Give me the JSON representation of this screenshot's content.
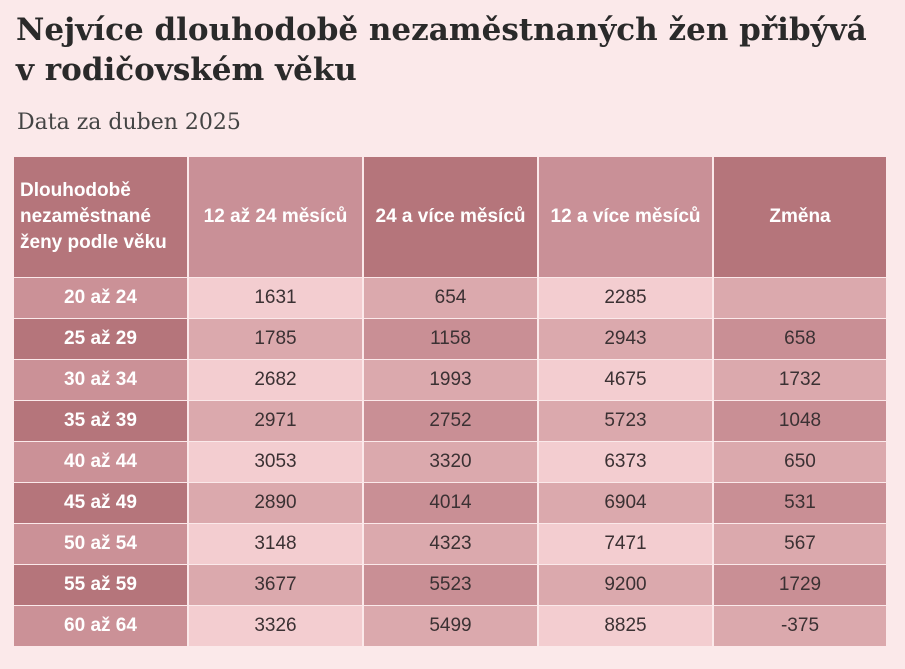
{
  "title": "Nejvíce dlouhodobě nezaměstnaných žen přibývá v rodičovském věku",
  "subtitle": "Data za duben 2025",
  "colors": {
    "background": "#fbe9ea",
    "header_dark": "#b5757b",
    "header_light": "#c99097",
    "label_dark": "#b5757b",
    "label_light": "#cb9197",
    "cell_light": "#f3cdd0",
    "cell_mid": "#dba9ad",
    "cell_dark": "#c98f95"
  },
  "chart_data": {
    "type": "table",
    "columns": [
      "Dlouhodobě nezaměstnané ženy podle věku",
      "12 až 24 měsíců",
      "24 a více měsíců",
      "12 a více měsíců",
      "Změna"
    ],
    "rows": [
      [
        "20 až 24",
        "1631",
        "654",
        "2285",
        ""
      ],
      [
        "25 až 29",
        "1785",
        "1158",
        "2943",
        "658"
      ],
      [
        "30 až 34",
        "2682",
        "1993",
        "4675",
        "1732"
      ],
      [
        "35 až 39",
        "2971",
        "2752",
        "5723",
        "1048"
      ],
      [
        "40 až 44",
        "3053",
        "3320",
        "6373",
        "650"
      ],
      [
        "45 až 49",
        "2890",
        "4014",
        "6904",
        "531"
      ],
      [
        "50 až 54",
        "3148",
        "4323",
        "7471",
        "567"
      ],
      [
        "55 až 59",
        "3677",
        "5523",
        "9200",
        "1729"
      ],
      [
        "60 až 64",
        "3326",
        "5499",
        "8825",
        "-375"
      ]
    ]
  }
}
